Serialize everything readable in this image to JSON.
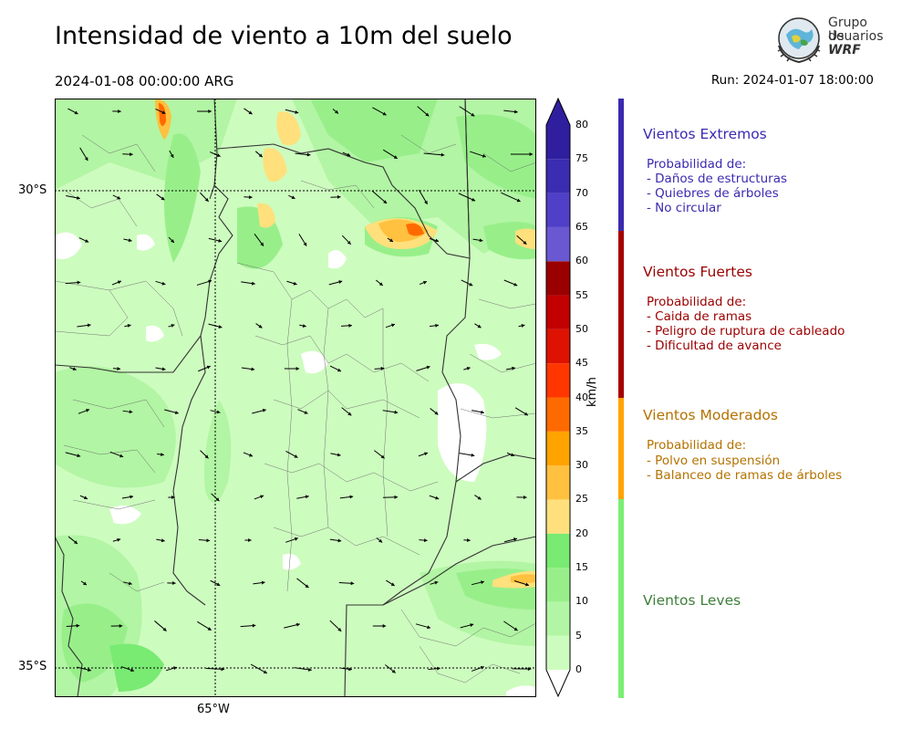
{
  "header": {
    "title": "Intensidad de viento a 10m del suelo",
    "valid_time": "2024-01-08 00:00:00 ARG",
    "run_time": "Run: 2024-01-07 18:00:00"
  },
  "logo": {
    "line1": "Grupo de",
    "line2": "Usuarios",
    "line3": "WRF"
  },
  "map": {
    "lat_labels": [
      "30°S",
      "35°S"
    ],
    "lon_labels": [
      "65°W"
    ]
  },
  "colorbar": {
    "unit": "km/h",
    "ticks": [
      "0",
      "5",
      "10",
      "15",
      "20",
      "25",
      "30",
      "35",
      "40",
      "45",
      "50",
      "55",
      "60",
      "65",
      "70",
      "75",
      "80"
    ],
    "colors": [
      "#ffffff",
      "#cdfcbf",
      "#b2f5a4",
      "#98ef8a",
      "#79ea72",
      "#ffe07c",
      "#ffc13f",
      "#ffa300",
      "#ff6a00",
      "#ff3600",
      "#dd1200",
      "#c20000",
      "#9b0000",
      "#6a58d2",
      "#5040c8",
      "#3a2db2",
      "#2f1f9f"
    ]
  },
  "categories": [
    {
      "title": "Vientos Extremos",
      "color": "#3b2ab0",
      "lines": [
        "Probabilidad de:",
        "- Daños de estructuras",
        "- Quiebres de árboles",
        "- No circular"
      ]
    },
    {
      "title": "Vientos Fuertes",
      "color": "#9b0000",
      "lines": [
        "Probabilidad de:",
        "- Caida de ramas",
        "- Peligro de ruptura de cableado",
        "- Dificultad de avance"
      ]
    },
    {
      "title": "Vientos Moderados",
      "color": "#b37200",
      "lines": [
        "Probabilidad de:",
        "- Polvo en suspensión",
        "- Balanceo de ramas de árboles"
      ]
    },
    {
      "title": "Vientos Leves",
      "color": "#3f7f3a",
      "lines": []
    }
  ],
  "bar_colors": {
    "extremos": "#3b2ab0",
    "fuertes": "#a50000",
    "moderados": "#ffa300",
    "leves": "#7aef74"
  }
}
